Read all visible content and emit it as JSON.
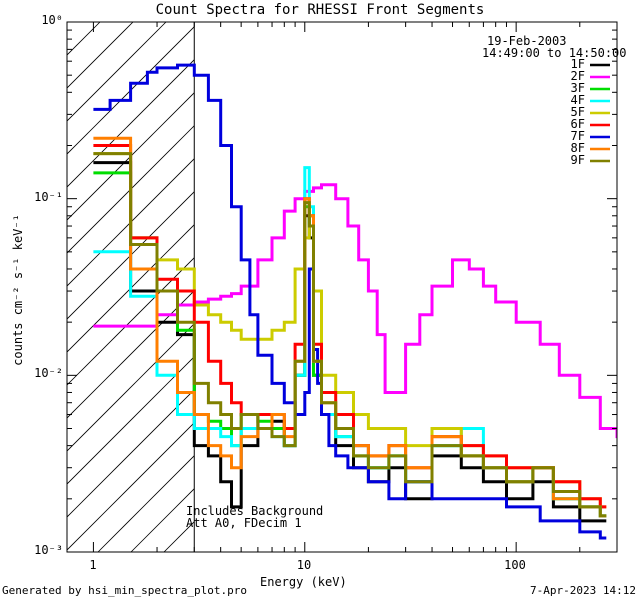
{
  "chart_data": {
    "type": "line",
    "title": "Count Spectra for RHESSI Front Segments",
    "xlabel": "Energy (keV)",
    "ylabel": "counts cm⁻² s⁻¹ keV⁻¹",
    "xscale": "log",
    "yscale": "log",
    "xlim": [
      0.75,
      300
    ],
    "ylim": [
      0.001,
      1
    ],
    "x_ticks": [
      1,
      10,
      100
    ],
    "x_tick_labels": [
      "1",
      "10",
      "100"
    ],
    "y_ticks": [
      0.001,
      0.01,
      0.1,
      1
    ],
    "y_tick_labels": [
      "10⁻³",
      "10⁻²",
      "10⁻¹",
      "10⁰"
    ],
    "date": "19-Feb-2003",
    "time_range": "14:49:00 to 14:50:00",
    "legend_position": "top-right",
    "annotation_lines": [
      "Includes Background",
      "Att A0, FDecim 1"
    ],
    "hatched_region": [
      0.75,
      3
    ],
    "series": [
      {
        "name": "1F",
        "color": "#000000",
        "x": [
          1,
          1.5,
          2,
          2.5,
          3,
          3.5,
          4,
          4.5,
          5,
          6,
          7,
          8,
          9,
          10,
          10.5,
          11,
          12,
          14,
          17,
          20,
          25,
          30,
          40,
          55,
          70,
          90,
          120,
          150,
          200,
          250
        ],
        "y": [
          0.16,
          0.03,
          0.02,
          0.017,
          0.004,
          0.0035,
          0.0025,
          0.0018,
          0.004,
          0.006,
          0.0055,
          0.004,
          0.01,
          0.08,
          0.06,
          0.01,
          0.006,
          0.004,
          0.003,
          0.0025,
          0.003,
          0.002,
          0.0035,
          0.003,
          0.0025,
          0.002,
          0.0025,
          0.0018,
          0.0015,
          0.0015
        ]
      },
      {
        "name": "2F",
        "color": "#ff00ff",
        "x": [
          1,
          1.5,
          2,
          2.5,
          3,
          3.5,
          4,
          4.5,
          5,
          6,
          7,
          8,
          9,
          10,
          11,
          12,
          14,
          16,
          18,
          20,
          22,
          24,
          27,
          30,
          35,
          40,
          50,
          60,
          70,
          80,
          100,
          130,
          160,
          200,
          250,
          300
        ],
        "y": [
          0.019,
          0.019,
          0.022,
          0.025,
          0.026,
          0.027,
          0.028,
          0.029,
          0.032,
          0.045,
          0.06,
          0.085,
          0.1,
          0.11,
          0.115,
          0.12,
          0.1,
          0.07,
          0.045,
          0.03,
          0.017,
          0.008,
          0.008,
          0.015,
          0.022,
          0.032,
          0.045,
          0.04,
          0.032,
          0.026,
          0.02,
          0.015,
          0.01,
          0.0075,
          0.005,
          0.0045
        ]
      },
      {
        "name": "3F",
        "color": "#00dd00",
        "x": [
          1,
          1.5,
          2,
          2.5,
          3,
          3.5,
          4,
          4.5,
          5,
          6,
          7,
          8,
          9,
          10,
          10.5,
          11,
          12,
          14,
          17,
          20,
          25,
          30,
          40,
          55,
          70,
          90,
          120,
          150,
          200,
          250
        ],
        "y": [
          0.14,
          0.06,
          0.03,
          0.018,
          0.006,
          0.0055,
          0.005,
          0.004,
          0.006,
          0.0055,
          0.005,
          0.004,
          0.01,
          0.09,
          0.07,
          0.01,
          0.006,
          0.0045,
          0.0035,
          0.003,
          0.0035,
          0.0025,
          0.004,
          0.0035,
          0.003,
          0.0025,
          0.003,
          0.002,
          0.0018,
          0.0016
        ]
      },
      {
        "name": "4F",
        "color": "#00ffff",
        "x": [
          1,
          1.5,
          2,
          2.5,
          3,
          3.5,
          4,
          4.5,
          5,
          6,
          7,
          8,
          9,
          10,
          10.5,
          11,
          12,
          14,
          17,
          20,
          25,
          30,
          40,
          55,
          70,
          90,
          120,
          150,
          200,
          250
        ],
        "y": [
          0.05,
          0.028,
          0.01,
          0.006,
          0.005,
          0.005,
          0.0045,
          0.004,
          0.005,
          0.005,
          0.0045,
          0.004,
          0.01,
          0.15,
          0.09,
          0.012,
          0.006,
          0.0045,
          0.004,
          0.003,
          0.0035,
          0.0025,
          0.004,
          0.005,
          0.003,
          0.0025,
          0.003,
          0.002,
          0.0018,
          0.0016
        ]
      },
      {
        "name": "5F",
        "color": "#cccc00",
        "x": [
          1,
          1.5,
          2,
          2.5,
          3,
          3.5,
          4,
          4.5,
          5,
          6,
          7,
          8,
          9,
          10,
          10.5,
          11,
          12,
          14,
          17,
          20,
          25,
          30,
          40,
          55,
          70,
          90,
          120,
          150,
          200,
          250
        ],
        "y": [
          0.18,
          0.06,
          0.045,
          0.04,
          0.025,
          0.022,
          0.02,
          0.018,
          0.016,
          0.016,
          0.018,
          0.02,
          0.04,
          0.06,
          0.07,
          0.03,
          0.01,
          0.008,
          0.006,
          0.005,
          0.005,
          0.004,
          0.005,
          0.004,
          0.0035,
          0.003,
          0.003,
          0.0025,
          0.002,
          0.0018
        ]
      },
      {
        "name": "6F",
        "color": "#ff0000",
        "x": [
          1,
          1.5,
          2,
          2.5,
          3,
          3.5,
          4,
          4.5,
          5,
          6,
          7,
          8,
          9,
          10,
          10.5,
          11,
          12,
          14,
          17,
          20,
          25,
          30,
          40,
          55,
          70,
          90,
          120,
          150,
          200,
          250
        ],
        "y": [
          0.2,
          0.06,
          0.035,
          0.03,
          0.02,
          0.012,
          0.009,
          0.007,
          0.006,
          0.006,
          0.006,
          0.005,
          0.015,
          0.1,
          0.08,
          0.015,
          0.008,
          0.006,
          0.004,
          0.0035,
          0.004,
          0.003,
          0.0045,
          0.004,
          0.0035,
          0.003,
          0.003,
          0.0025,
          0.002,
          0.0018
        ]
      },
      {
        "name": "7F",
        "color": "#0000dd",
        "x": [
          1,
          1.2,
          1.5,
          1.8,
          2,
          2.5,
          3,
          3.5,
          4,
          4.5,
          5,
          5.5,
          6,
          7,
          8,
          9,
          10,
          10.5,
          11,
          11.5,
          12,
          13,
          14,
          16,
          20,
          25,
          30,
          40,
          60,
          90,
          130,
          200,
          250
        ],
        "y": [
          0.32,
          0.36,
          0.45,
          0.52,
          0.55,
          0.57,
          0.5,
          0.36,
          0.2,
          0.09,
          0.045,
          0.022,
          0.013,
          0.009,
          0.007,
          0.006,
          0.008,
          0.04,
          0.014,
          0.009,
          0.006,
          0.004,
          0.0035,
          0.003,
          0.0025,
          0.002,
          0.0025,
          0.002,
          0.002,
          0.0018,
          0.0015,
          0.0013,
          0.0012
        ]
      },
      {
        "name": "8F",
        "color": "#ff7f00",
        "x": [
          1,
          1.5,
          2,
          2.5,
          3,
          3.5,
          4,
          4.5,
          5,
          6,
          7,
          8,
          9,
          10,
          10.5,
          11,
          12,
          14,
          17,
          20,
          25,
          30,
          40,
          55,
          70,
          90,
          120,
          150,
          200,
          250
        ],
        "y": [
          0.22,
          0.04,
          0.012,
          0.008,
          0.006,
          0.004,
          0.0035,
          0.003,
          0.0045,
          0.005,
          0.006,
          0.0045,
          0.012,
          0.1,
          0.08,
          0.012,
          0.007,
          0.005,
          0.004,
          0.0035,
          0.004,
          0.003,
          0.0045,
          0.0035,
          0.003,
          0.0025,
          0.003,
          0.002,
          0.0018,
          0.0016
        ]
      },
      {
        "name": "9F",
        "color": "#808000",
        "x": [
          1,
          1.5,
          2,
          2.5,
          3,
          3.5,
          4,
          4.5,
          5,
          6,
          7,
          8,
          9,
          10,
          10.5,
          11,
          12,
          14,
          17,
          20,
          25,
          30,
          40,
          55,
          70,
          90,
          120,
          150,
          200,
          250
        ],
        "y": [
          0.18,
          0.055,
          0.03,
          0.02,
          0.009,
          0.007,
          0.006,
          0.005,
          0.006,
          0.005,
          0.0045,
          0.004,
          0.012,
          0.095,
          0.07,
          0.012,
          0.007,
          0.005,
          0.0035,
          0.003,
          0.0035,
          0.0025,
          0.004,
          0.0035,
          0.003,
          0.0025,
          0.003,
          0.0022,
          0.0018,
          0.0016
        ]
      }
    ]
  },
  "footer": {
    "generated_by": "Generated by hsi_min_spectra_plot.pro",
    "timestamp": "7-Apr-2023 14:12"
  }
}
